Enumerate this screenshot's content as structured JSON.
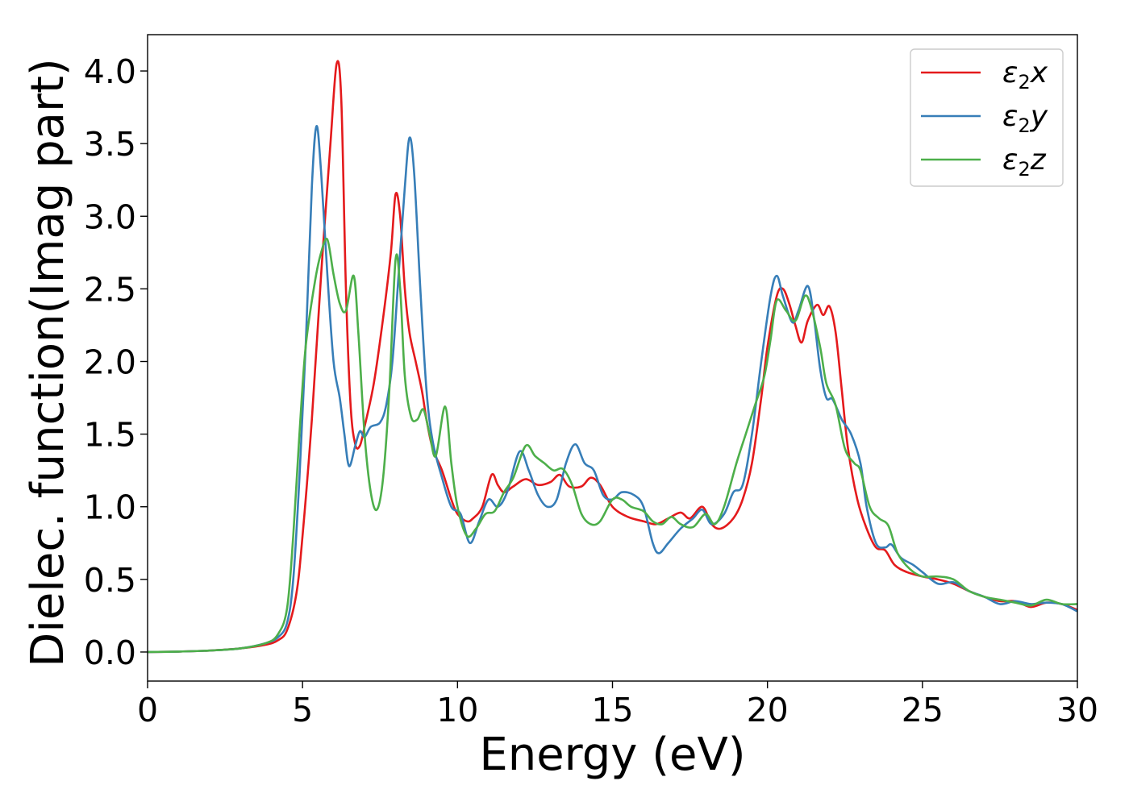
{
  "chart_data": {
    "type": "line",
    "title": "",
    "xlabel": "Energy (eV)",
    "ylabel": "Dielec. function(Imag part)",
    "xlim": [
      0,
      30
    ],
    "ylim": [
      -0.2,
      4.25
    ],
    "x_ticks": [
      0,
      5,
      10,
      15,
      20,
      25,
      30
    ],
    "y_ticks": [
      0.0,
      0.5,
      1.0,
      1.5,
      2.0,
      2.5,
      3.0,
      3.5,
      4.0
    ],
    "x_tick_labels": [
      "0",
      "5",
      "10",
      "15",
      "20",
      "25",
      "30"
    ],
    "y_tick_labels": [
      "0.0",
      "0.5",
      "1.0",
      "1.5",
      "2.0",
      "2.5",
      "3.0",
      "3.5",
      "4.0"
    ],
    "grid": false,
    "legend_position": "top-right",
    "series": [
      {
        "name": "ε2x",
        "legend": {
          "base": "ε",
          "sub": "2",
          "var": "x"
        },
        "color": "#e41a1c",
        "points": [
          [
            0,
            0.0
          ],
          [
            1,
            0.003
          ],
          [
            2,
            0.01
          ],
          [
            3,
            0.025
          ],
          [
            3.8,
            0.05
          ],
          [
            4.2,
            0.08
          ],
          [
            4.5,
            0.15
          ],
          [
            4.8,
            0.4
          ],
          [
            5.0,
            0.8
          ],
          [
            5.3,
            1.6
          ],
          [
            5.6,
            2.6
          ],
          [
            5.9,
            3.5
          ],
          [
            6.1,
            4.05
          ],
          [
            6.25,
            3.8
          ],
          [
            6.4,
            2.5
          ],
          [
            6.55,
            1.7
          ],
          [
            6.7,
            1.43
          ],
          [
            6.85,
            1.42
          ],
          [
            7.0,
            1.55
          ],
          [
            7.3,
            1.85
          ],
          [
            7.6,
            2.3
          ],
          [
            7.85,
            2.75
          ],
          [
            8.0,
            3.15
          ],
          [
            8.15,
            3.0
          ],
          [
            8.3,
            2.5
          ],
          [
            8.45,
            2.2
          ],
          [
            8.65,
            2.0
          ],
          [
            8.85,
            1.8
          ],
          [
            9.0,
            1.6
          ],
          [
            9.2,
            1.4
          ],
          [
            9.5,
            1.25
          ],
          [
            9.8,
            1.05
          ],
          [
            10.0,
            0.95
          ],
          [
            10.3,
            0.9
          ],
          [
            10.5,
            0.92
          ],
          [
            10.8,
            1.0
          ],
          [
            11.1,
            1.22
          ],
          [
            11.3,
            1.15
          ],
          [
            11.5,
            1.1
          ],
          [
            11.8,
            1.14
          ],
          [
            12.2,
            1.19
          ],
          [
            12.6,
            1.15
          ],
          [
            13.0,
            1.17
          ],
          [
            13.3,
            1.22
          ],
          [
            13.6,
            1.14
          ],
          [
            14.0,
            1.14
          ],
          [
            14.3,
            1.2
          ],
          [
            14.6,
            1.15
          ],
          [
            15.0,
            1.0
          ],
          [
            15.5,
            0.93
          ],
          [
            16.0,
            0.9
          ],
          [
            16.4,
            0.88
          ],
          [
            16.8,
            0.92
          ],
          [
            17.2,
            0.96
          ],
          [
            17.5,
            0.92
          ],
          [
            17.9,
            1.0
          ],
          [
            18.2,
            0.88
          ],
          [
            18.5,
            0.85
          ],
          [
            18.9,
            0.92
          ],
          [
            19.2,
            1.05
          ],
          [
            19.5,
            1.3
          ],
          [
            19.8,
            1.75
          ],
          [
            20.0,
            2.1
          ],
          [
            20.3,
            2.45
          ],
          [
            20.5,
            2.5
          ],
          [
            20.7,
            2.4
          ],
          [
            20.9,
            2.25
          ],
          [
            21.1,
            2.13
          ],
          [
            21.3,
            2.28
          ],
          [
            21.6,
            2.39
          ],
          [
            21.8,
            2.32
          ],
          [
            22.0,
            2.38
          ],
          [
            22.2,
            2.2
          ],
          [
            22.4,
            1.8
          ],
          [
            22.6,
            1.4
          ],
          [
            22.9,
            1.05
          ],
          [
            23.2,
            0.85
          ],
          [
            23.5,
            0.72
          ],
          [
            23.8,
            0.7
          ],
          [
            24.1,
            0.6
          ],
          [
            24.5,
            0.55
          ],
          [
            25.0,
            0.52
          ],
          [
            25.5,
            0.5
          ],
          [
            26.0,
            0.47
          ],
          [
            26.5,
            0.42
          ],
          [
            27.0,
            0.38
          ],
          [
            27.5,
            0.35
          ],
          [
            28.0,
            0.35
          ],
          [
            28.5,
            0.31
          ],
          [
            29.0,
            0.34
          ],
          [
            29.5,
            0.33
          ],
          [
            30.0,
            0.29
          ]
        ]
      },
      {
        "name": "ε2y",
        "legend": {
          "base": "ε",
          "sub": "2",
          "var": "y"
        },
        "color": "#377eb8",
        "points": [
          [
            0,
            0.0
          ],
          [
            1,
            0.003
          ],
          [
            2,
            0.01
          ],
          [
            3,
            0.025
          ],
          [
            3.8,
            0.06
          ],
          [
            4.2,
            0.1
          ],
          [
            4.5,
            0.2
          ],
          [
            4.7,
            0.5
          ],
          [
            4.9,
            1.2
          ],
          [
            5.1,
            2.1
          ],
          [
            5.3,
            3.2
          ],
          [
            5.45,
            3.62
          ],
          [
            5.6,
            3.3
          ],
          [
            5.8,
            2.6
          ],
          [
            6.0,
            2.0
          ],
          [
            6.2,
            1.75
          ],
          [
            6.35,
            1.5
          ],
          [
            6.5,
            1.28
          ],
          [
            6.7,
            1.42
          ],
          [
            6.85,
            1.52
          ],
          [
            7.0,
            1.48
          ],
          [
            7.2,
            1.55
          ],
          [
            7.5,
            1.58
          ],
          [
            7.7,
            1.7
          ],
          [
            7.9,
            2.0
          ],
          [
            8.1,
            2.6
          ],
          [
            8.3,
            3.2
          ],
          [
            8.45,
            3.54
          ],
          [
            8.6,
            3.3
          ],
          [
            8.8,
            2.5
          ],
          [
            9.0,
            1.8
          ],
          [
            9.2,
            1.45
          ],
          [
            9.5,
            1.2
          ],
          [
            9.8,
            1.0
          ],
          [
            10.1,
            0.95
          ],
          [
            10.4,
            0.75
          ],
          [
            10.7,
            0.9
          ],
          [
            11.0,
            1.05
          ],
          [
            11.3,
            1.0
          ],
          [
            11.6,
            1.1
          ],
          [
            12.0,
            1.38
          ],
          [
            12.3,
            1.25
          ],
          [
            12.6,
            1.08
          ],
          [
            12.9,
            1.0
          ],
          [
            13.2,
            1.05
          ],
          [
            13.5,
            1.3
          ],
          [
            13.8,
            1.43
          ],
          [
            14.1,
            1.3
          ],
          [
            14.4,
            1.25
          ],
          [
            14.7,
            1.08
          ],
          [
            15.0,
            1.05
          ],
          [
            15.3,
            1.1
          ],
          [
            15.7,
            1.08
          ],
          [
            16.0,
            1.0
          ],
          [
            16.3,
            0.75
          ],
          [
            16.5,
            0.68
          ],
          [
            16.8,
            0.75
          ],
          [
            17.2,
            0.85
          ],
          [
            17.6,
            0.92
          ],
          [
            17.9,
            0.98
          ],
          [
            18.2,
            0.88
          ],
          [
            18.6,
            0.95
          ],
          [
            18.9,
            1.1
          ],
          [
            19.2,
            1.15
          ],
          [
            19.5,
            1.5
          ],
          [
            19.8,
            2.0
          ],
          [
            20.1,
            2.45
          ],
          [
            20.3,
            2.59
          ],
          [
            20.5,
            2.45
          ],
          [
            20.8,
            2.27
          ],
          [
            21.0,
            2.35
          ],
          [
            21.3,
            2.52
          ],
          [
            21.5,
            2.3
          ],
          [
            21.7,
            1.95
          ],
          [
            21.9,
            1.75
          ],
          [
            22.1,
            1.74
          ],
          [
            22.4,
            1.6
          ],
          [
            22.7,
            1.5
          ],
          [
            23.0,
            1.3
          ],
          [
            23.2,
            1.0
          ],
          [
            23.5,
            0.75
          ],
          [
            23.8,
            0.72
          ],
          [
            24.0,
            0.74
          ],
          [
            24.3,
            0.65
          ],
          [
            24.7,
            0.6
          ],
          [
            25.0,
            0.55
          ],
          [
            25.5,
            0.47
          ],
          [
            26.0,
            0.48
          ],
          [
            26.5,
            0.42
          ],
          [
            27.0,
            0.38
          ],
          [
            27.5,
            0.33
          ],
          [
            28.0,
            0.35
          ],
          [
            28.5,
            0.33
          ],
          [
            29.0,
            0.34
          ],
          [
            29.5,
            0.33
          ],
          [
            30.0,
            0.28
          ]
        ]
      },
      {
        "name": "ε2z",
        "legend": {
          "base": "ε",
          "sub": "2",
          "var": "z"
        },
        "color": "#4daf4a",
        "points": [
          [
            0,
            0.0
          ],
          [
            1,
            0.003
          ],
          [
            2,
            0.01
          ],
          [
            3,
            0.025
          ],
          [
            3.8,
            0.06
          ],
          [
            4.2,
            0.12
          ],
          [
            4.5,
            0.3
          ],
          [
            4.7,
            0.8
          ],
          [
            4.9,
            1.5
          ],
          [
            5.1,
            2.1
          ],
          [
            5.4,
            2.55
          ],
          [
            5.6,
            2.75
          ],
          [
            5.8,
            2.84
          ],
          [
            6.0,
            2.6
          ],
          [
            6.2,
            2.4
          ],
          [
            6.4,
            2.35
          ],
          [
            6.65,
            2.59
          ],
          [
            6.8,
            2.2
          ],
          [
            7.0,
            1.5
          ],
          [
            7.2,
            1.1
          ],
          [
            7.4,
            0.98
          ],
          [
            7.6,
            1.2
          ],
          [
            7.8,
            1.8
          ],
          [
            8.0,
            2.7
          ],
          [
            8.15,
            2.5
          ],
          [
            8.3,
            1.9
          ],
          [
            8.5,
            1.62
          ],
          [
            8.7,
            1.6
          ],
          [
            8.9,
            1.67
          ],
          [
            9.1,
            1.5
          ],
          [
            9.3,
            1.35
          ],
          [
            9.6,
            1.69
          ],
          [
            9.8,
            1.3
          ],
          [
            10.0,
            1.0
          ],
          [
            10.3,
            0.8
          ],
          [
            10.6,
            0.85
          ],
          [
            10.9,
            0.95
          ],
          [
            11.2,
            0.97
          ],
          [
            11.5,
            1.1
          ],
          [
            11.8,
            1.2
          ],
          [
            12.2,
            1.42
          ],
          [
            12.5,
            1.35
          ],
          [
            12.8,
            1.3
          ],
          [
            13.1,
            1.25
          ],
          [
            13.4,
            1.26
          ],
          [
            13.7,
            1.15
          ],
          [
            14.0,
            0.95
          ],
          [
            14.3,
            0.88
          ],
          [
            14.6,
            0.9
          ],
          [
            15.0,
            1.05
          ],
          [
            15.3,
            1.05
          ],
          [
            15.6,
            1.0
          ],
          [
            16.0,
            0.97
          ],
          [
            16.3,
            0.9
          ],
          [
            16.6,
            0.88
          ],
          [
            16.9,
            0.93
          ],
          [
            17.2,
            0.88
          ],
          [
            17.6,
            0.86
          ],
          [
            18.0,
            0.95
          ],
          [
            18.3,
            0.88
          ],
          [
            18.6,
            1.0
          ],
          [
            19.0,
            1.3
          ],
          [
            19.3,
            1.5
          ],
          [
            19.6,
            1.7
          ],
          [
            19.9,
            1.9
          ],
          [
            20.1,
            2.15
          ],
          [
            20.3,
            2.42
          ],
          [
            20.6,
            2.35
          ],
          [
            20.9,
            2.28
          ],
          [
            21.2,
            2.45
          ],
          [
            21.4,
            2.38
          ],
          [
            21.7,
            2.1
          ],
          [
            21.9,
            1.85
          ],
          [
            22.2,
            1.7
          ],
          [
            22.5,
            1.4
          ],
          [
            22.8,
            1.3
          ],
          [
            23.0,
            1.25
          ],
          [
            23.3,
            1.0
          ],
          [
            23.6,
            0.92
          ],
          [
            23.9,
            0.87
          ],
          [
            24.2,
            0.68
          ],
          [
            24.6,
            0.57
          ],
          [
            25.0,
            0.52
          ],
          [
            25.5,
            0.52
          ],
          [
            26.0,
            0.5
          ],
          [
            26.5,
            0.42
          ],
          [
            27.0,
            0.38
          ],
          [
            27.5,
            0.36
          ],
          [
            28.0,
            0.34
          ],
          [
            28.5,
            0.32
          ],
          [
            29.0,
            0.36
          ],
          [
            29.5,
            0.33
          ],
          [
            30.0,
            0.33
          ]
        ]
      }
    ]
  }
}
